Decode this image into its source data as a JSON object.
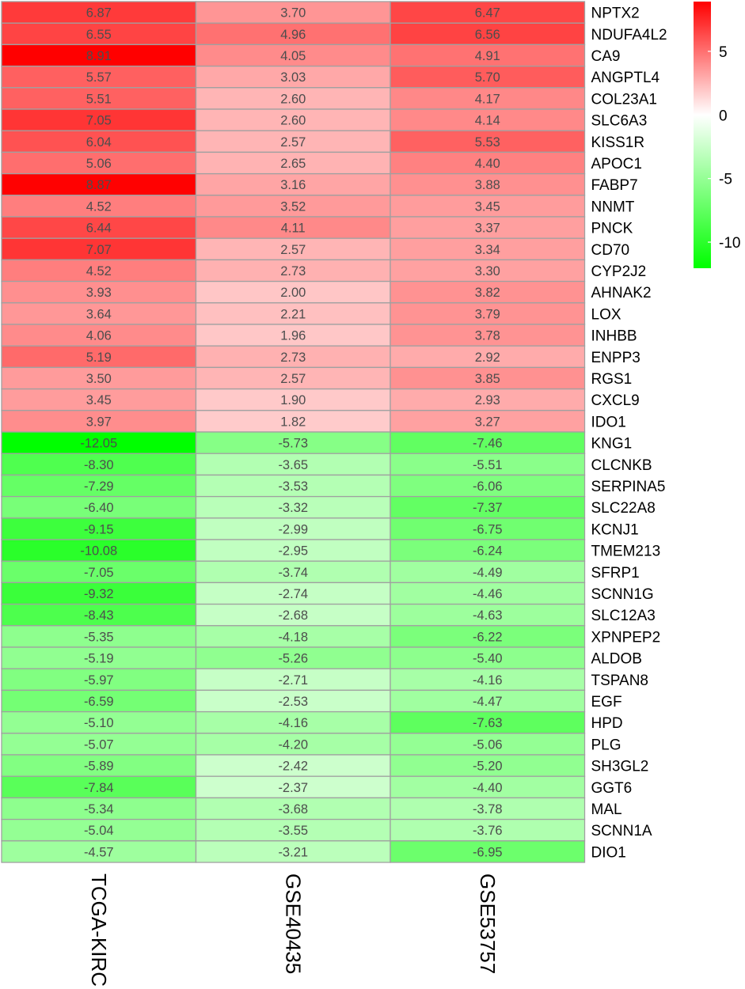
{
  "chart_data": {
    "type": "heatmap",
    "columns": [
      "TCGA-KIRC",
      "GSE40435",
      "GSE53757"
    ],
    "rows": [
      "NPTX2",
      "NDUFA4L2",
      "CA9",
      "ANGPTL4",
      "COL23A1",
      "SLC6A3",
      "KISS1R",
      "APOC1",
      "FABP7",
      "NNMT",
      "PNCK",
      "CD70",
      "CYP2J2",
      "AHNAK2",
      "LOX",
      "INHBB",
      "ENPP3",
      "RGS1",
      "CXCL9",
      "IDO1",
      "KNG1",
      "CLCNKB",
      "SERPINA5",
      "SLC22A8",
      "KCNJ1",
      "TMEM213",
      "SFRP1",
      "SCNN1G",
      "SLC12A3",
      "XPNPEP2",
      "ALDOB",
      "TSPAN8",
      "EGF",
      "HPD",
      "PLG",
      "SH3GL2",
      "GGT6",
      "MAL",
      "SCNN1A",
      "DIO1"
    ],
    "values": [
      [
        "6.87",
        "3.70",
        "6.47"
      ],
      [
        "6.55",
        "4.96",
        "6.56"
      ],
      [
        "8.91",
        "4.05",
        "4.91"
      ],
      [
        "5.57",
        "3.03",
        "5.70"
      ],
      [
        "5.51",
        "2.60",
        "4.17"
      ],
      [
        "7.05",
        "2.60",
        "4.14"
      ],
      [
        "6.04",
        "2.57",
        "5.53"
      ],
      [
        "5.06",
        "2.65",
        "4.40"
      ],
      [
        "8.87",
        "3.16",
        "3.88"
      ],
      [
        "4.52",
        "3.52",
        "3.45"
      ],
      [
        "6.44",
        "4.11",
        "3.37"
      ],
      [
        "7.07",
        "2.57",
        "3.34"
      ],
      [
        "4.52",
        "2.73",
        "3.30"
      ],
      [
        "3.93",
        "2.00",
        "3.82"
      ],
      [
        "3.64",
        "2.21",
        "3.79"
      ],
      [
        "4.06",
        "1.96",
        "3.78"
      ],
      [
        "5.19",
        "2.73",
        "2.92"
      ],
      [
        "3.50",
        "2.57",
        "3.85"
      ],
      [
        "3.45",
        "1.90",
        "2.93"
      ],
      [
        "3.97",
        "1.82",
        "3.27"
      ],
      [
        "-12.05",
        "-5.73",
        "-7.46"
      ],
      [
        "-8.30",
        "-3.65",
        "-5.51"
      ],
      [
        "-7.29",
        "-3.53",
        "-6.06"
      ],
      [
        "-6.40",
        "-3.32",
        "-7.37"
      ],
      [
        "-9.15",
        "-2.99",
        "-6.75"
      ],
      [
        "-10.08",
        "-2.95",
        "-6.24"
      ],
      [
        "-7.05",
        "-3.74",
        "-4.49"
      ],
      [
        "-9.32",
        "-2.74",
        "-4.46"
      ],
      [
        "-8.43",
        "-2.68",
        "-4.63"
      ],
      [
        "-5.35",
        "-4.18",
        "-6.22"
      ],
      [
        "-5.19",
        "-5.26",
        "-5.40"
      ],
      [
        "-5.97",
        "-2.71",
        "-4.16"
      ],
      [
        "-6.59",
        "-2.53",
        "-4.47"
      ],
      [
        "-5.10",
        "-4.16",
        "-7.63"
      ],
      [
        "-5.07",
        "-4.20",
        "-5.06"
      ],
      [
        "-5.89",
        "-2.42",
        "-5.20"
      ],
      [
        "-7.84",
        "-2.37",
        "-4.40"
      ],
      [
        "-5.34",
        "-3.68",
        "-3.78"
      ],
      [
        "-5.04",
        "-3.55",
        "-3.76"
      ],
      [
        "-4.57",
        "-3.21",
        "-6.95"
      ]
    ],
    "color_scale": {
      "low_value": -12.05,
      "mid_value": 0,
      "high_value": 8.91,
      "low_color": "#00ff00",
      "mid_color": "#ffffff",
      "high_color": "#ff0000"
    },
    "legend_ticks": [
      "5",
      "0",
      "-5",
      "-10"
    ],
    "legend_placement": "top-right",
    "grid": true,
    "cell_border_color": "#a0a0a0",
    "value_text_color": "#4d4d4d"
  }
}
